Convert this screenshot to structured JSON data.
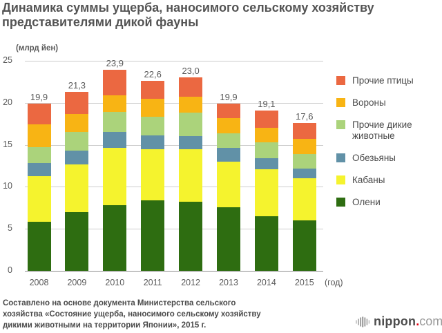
{
  "title": "Динамика суммы ущерба, наносимого сельскому хозяйству представителями дикой фауны",
  "source_note": "Составлено на основе документа Министерства сельского\nхозяйства «Состояние ущерба, наносимого сельскому хозяйству\nдикими животными на территории Японии», 2015 г.",
  "branding": {
    "icon": "nippon-logo-icon",
    "name_bold": "nippon",
    "dot": ".",
    "name_light": "com",
    "dot_color": "#e60012"
  },
  "chart_data": {
    "type": "bar",
    "stacked": true,
    "title": "Динамика суммы ущерба, наносимого сельскому хозяйству представителями дикой фауны",
    "unit_label": "(млрд йен)",
    "x_axis_suffix": "(год)",
    "categories": [
      "2008",
      "2009",
      "2010",
      "2011",
      "2012",
      "2013",
      "2014",
      "2015"
    ],
    "totals": [
      19.9,
      21.3,
      23.9,
      22.6,
      23.0,
      19.9,
      19.1,
      17.6
    ],
    "totals_labels": [
      "19,9",
      "21,3",
      "23,9",
      "22,6",
      "23,0",
      "19,9",
      "19,1",
      "17,6"
    ],
    "ylim": [
      0,
      25
    ],
    "yticks": [
      0,
      5,
      10,
      15,
      20,
      25
    ],
    "grid": "horizontal",
    "legend_position": "right",
    "legend_order": "top_series_first",
    "series_bottom_to_top": [
      {
        "name": "Олени",
        "color": "#2e6d11",
        "values": [
          5.8,
          7.0,
          7.8,
          8.4,
          8.2,
          7.6,
          6.5,
          6.0
        ]
      },
      {
        "name": "Кабаны",
        "color": "#f5f32e",
        "values": [
          5.5,
          5.7,
          6.8,
          6.1,
          6.3,
          5.4,
          5.6,
          5.0
        ]
      },
      {
        "name": "Обезьяны",
        "color": "#6191a7",
        "values": [
          1.5,
          1.6,
          1.9,
          1.6,
          1.5,
          1.6,
          1.3,
          1.2
        ]
      },
      {
        "name": "Прочие дикие животные",
        "color": "#abd37b",
        "values": [
          1.9,
          2.2,
          2.4,
          2.2,
          2.8,
          1.8,
          1.9,
          1.7
        ]
      },
      {
        "name": "Вороны",
        "color": "#f8b414",
        "values": [
          2.7,
          2.2,
          2.0,
          2.2,
          1.9,
          1.8,
          1.7,
          1.8
        ]
      },
      {
        "name": "Прочие птицы",
        "color": "#eb6841",
        "values": [
          2.5,
          2.6,
          3.0,
          2.1,
          2.3,
          1.7,
          2.1,
          1.9
        ]
      }
    ]
  }
}
